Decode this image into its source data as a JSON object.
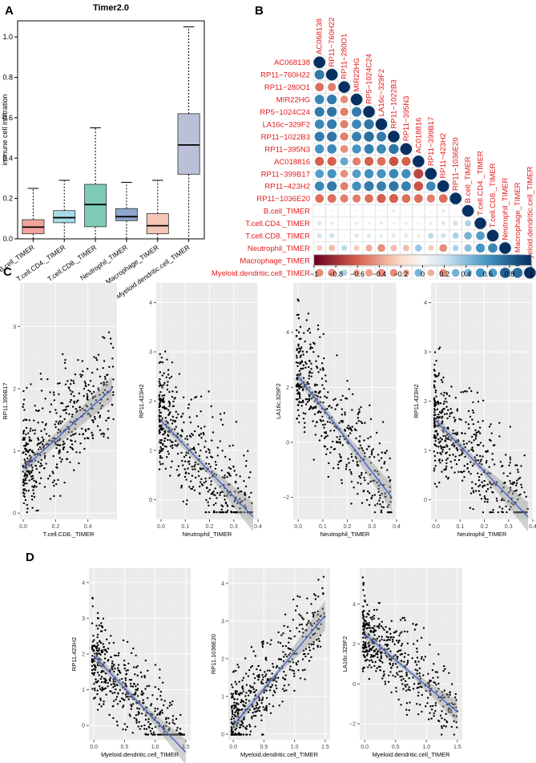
{
  "panel_labels": {
    "a": "A",
    "b": "B",
    "c": "C",
    "d": "D"
  },
  "chart_data": [
    {
      "id": "boxplot",
      "type": "box",
      "title": "Timer2.0",
      "xlabel": "",
      "ylabel": "immune cell infiltration",
      "ylim": [
        0,
        1.08
      ],
      "yticks": [
        0.0,
        0.2,
        0.4,
        0.6,
        0.8,
        1.0
      ],
      "ytick_labels": [
        "0.0",
        "0.2",
        "0.4",
        "0.6",
        "0.8",
        "1.0"
      ],
      "categories": [
        "B.cell_TIMER",
        "T.cell.CD4._TIMER",
        "T.cell.CD8._TIMER",
        "Neutrophil_TIMER",
        "Macrophage_TIMER",
        "Myeloid.dendritic.cell_TIMER"
      ],
      "colors": [
        "#f2a39b",
        "#a8dbe8",
        "#7fcbb8",
        "#8fa6cc",
        "#f5c5b8",
        "#b9c0d8"
      ],
      "boxes": [
        {
          "min": 0.0,
          "q1": 0.025,
          "median": 0.058,
          "q3": 0.095,
          "max": 0.25
        },
        {
          "min": 0.0,
          "q1": 0.08,
          "median": 0.105,
          "q3": 0.14,
          "max": 0.29
        },
        {
          "min": 0.0,
          "q1": 0.06,
          "median": 0.17,
          "q3": 0.27,
          "max": 0.55
        },
        {
          "min": 0.0,
          "q1": 0.09,
          "median": 0.11,
          "q3": 0.15,
          "max": 0.28
        },
        {
          "min": 0.0,
          "q1": 0.025,
          "median": 0.065,
          "q3": 0.125,
          "max": 0.29
        },
        {
          "min": 0.0,
          "q1": 0.32,
          "median": 0.465,
          "q3": 0.62,
          "max": 1.05
        }
      ]
    },
    {
      "id": "correlation",
      "type": "heatmap",
      "style": "corrplot-lower-circles",
      "labels": [
        "AC068138",
        "RP11−760H22",
        "RP11−280O1",
        "MIR22HG",
        "RP5−1024C24",
        "LA16c−329F2",
        "RP11−1022B3",
        "RP11−395N3",
        "AC018816",
        "RP11−399B17",
        "RP11−423H2",
        "RP11−1036E20",
        "B.cell_TIMER",
        "T.cell.CD4._TIMER",
        "T.cell.CD8._TIMER",
        "Neutrophil_TIMER",
        "Macrophage_TIMER",
        "Myeloid.dendritic.cell_TIMER"
      ],
      "matrix": [
        [
          1
        ],
        [
          0.7,
          1
        ],
        [
          -0.55,
          -0.5,
          1
        ],
        [
          0.65,
          0.7,
          -0.45,
          1
        ],
        [
          0.7,
          0.72,
          -0.5,
          0.7,
          1
        ],
        [
          0.65,
          0.7,
          -0.5,
          0.65,
          0.72,
          1
        ],
        [
          0.7,
          0.72,
          -0.5,
          0.68,
          0.75,
          0.7,
          1
        ],
        [
          0.6,
          0.65,
          -0.45,
          0.6,
          0.68,
          0.65,
          0.72,
          1
        ],
        [
          -0.6,
          -0.6,
          0.5,
          -0.5,
          -0.6,
          -0.55,
          -0.65,
          -0.6,
          1
        ],
        [
          0.55,
          0.6,
          -0.45,
          0.55,
          0.62,
          0.6,
          0.65,
          0.62,
          -0.7,
          1
        ],
        [
          0.65,
          0.7,
          -0.5,
          0.62,
          0.7,
          0.68,
          0.72,
          0.68,
          -0.65,
          0.65,
          1
        ],
        [
          -0.55,
          -0.55,
          -0.5,
          -0.5,
          -0.55,
          -0.6,
          -0.6,
          -0.55,
          -0.55,
          -0.5,
          -0.55,
          1
        ],
        [
          0.05,
          0.05,
          -0.05,
          0.05,
          0.0,
          0.05,
          0.1,
          0.05,
          0.0,
          0.05,
          0.1,
          -0.05,
          1
        ],
        [
          0.15,
          0.1,
          -0.05,
          0.1,
          0.05,
          0.1,
          0.05,
          0.1,
          -0.05,
          0.1,
          0.15,
          0.2,
          0.3,
          1
        ],
        [
          0.2,
          0.2,
          -0.05,
          0.15,
          0.15,
          0.1,
          0.15,
          0.15,
          -0.1,
          0.25,
          0.2,
          0.3,
          0.45,
          0.55,
          1
        ],
        [
          -0.25,
          -0.3,
          0.25,
          -0.25,
          -0.35,
          -0.45,
          -0.3,
          -0.3,
          0.35,
          -0.25,
          -0.45,
          0.3,
          0.4,
          0.6,
          0.65,
          1
        ],
        [
          -0.25,
          -0.25,
          0.2,
          -0.25,
          -0.3,
          -0.35,
          -0.25,
          -0.25,
          0.35,
          -0.2,
          -0.35,
          0.25,
          0.35,
          0.55,
          0.6,
          0.8,
          1
        ],
        [
          -0.45,
          -0.45,
          0.3,
          -0.35,
          -0.4,
          -0.45,
          -0.45,
          -0.35,
          0.45,
          -0.35,
          -0.45,
          0.45,
          0.45,
          0.6,
          0.55,
          0.8,
          0.75,
          1
        ]
      ],
      "gene_label_color": "#e41a1c",
      "cell_label_color": "#e41a1c",
      "colorbar_ticks": [
        -1,
        -0.8,
        -0.6,
        -0.4,
        -0.2,
        0,
        0.2,
        0.4,
        0.6,
        0.8,
        1
      ],
      "colorbar_tick_labels": [
        "−1",
        "−0.8",
        "−0.6",
        "−0.4",
        "−0.2",
        "0",
        "0.2",
        "0.4",
        "0.6",
        "0.8",
        "1"
      ],
      "colors": {
        "neg": "#67001f",
        "mid": "#f7f7f7",
        "pos": "#053061"
      }
    },
    {
      "id": "C1",
      "type": "scatter",
      "xlabel": "T.cell.CD8._TIMER",
      "ylabel": "RP11.399B17",
      "xlim": [
        -0.02,
        0.58
      ],
      "ylim": [
        -0.1,
        3.7
      ],
      "xticks": [
        0.0,
        0.2,
        0.4
      ],
      "xtick_labels": [
        "0.0",
        "0.2",
        "0.4"
      ],
      "yticks": [
        0,
        1,
        2,
        3
      ],
      "ytick_labels": [
        "0",
        "1",
        "2",
        "3"
      ],
      "trend": {
        "x": [
          0.0,
          0.55
        ],
        "y": [
          0.72,
          2.0
        ],
        "band": [
          0.08,
          0.12,
          0.2
        ]
      },
      "points_summary": "dense cloud, positive trend",
      "points_seed": 11,
      "n_points": 480
    },
    {
      "id": "C2",
      "type": "scatter",
      "xlabel": "Neutrophil_TIMER",
      "ylabel": "RP11.423H2",
      "xlim": [
        -0.02,
        0.4
      ],
      "ylim": [
        -0.4,
        4.4
      ],
      "xticks": [
        0.0,
        0.1,
        0.2,
        0.3,
        0.4
      ],
      "xtick_labels": [
        "0.0",
        "0.1",
        "0.2",
        "0.3",
        "0.4"
      ],
      "yticks": [
        0,
        1,
        2,
        3,
        4
      ],
      "ytick_labels": [
        "0",
        "1",
        "2",
        "3",
        "4"
      ],
      "trend": {
        "x": [
          0.0,
          0.38
        ],
        "y": [
          1.6,
          -0.35
        ],
        "band": [
          0.1,
          0.08,
          0.3
        ]
      },
      "points_summary": "dense cloud, negative trend",
      "points_seed": 23,
      "n_points": 480
    },
    {
      "id": "C3",
      "type": "scatter",
      "xlabel": "Neutrophil_TIMER",
      "ylabel": "LA16c.329F2",
      "xlim": [
        -0.02,
        0.4
      ],
      "ylim": [
        -2.8,
        5.8
      ],
      "xticks": [
        0.0,
        0.1,
        0.2,
        0.3,
        0.4
      ],
      "xtick_labels": [
        "0.0",
        "0.1",
        "0.2",
        "0.3",
        "0.4"
      ],
      "yticks": [
        -2,
        0,
        2,
        4
      ],
      "ytick_labels": [
        "−2",
        "0",
        "2",
        "4"
      ],
      "trend": {
        "x": [
          0.0,
          0.38
        ],
        "y": [
          2.4,
          -2.0
        ],
        "band": [
          0.2,
          0.15,
          0.5
        ]
      },
      "points_summary": "dense cloud, negative trend",
      "points_seed": 37,
      "n_points": 480
    },
    {
      "id": "C4",
      "type": "scatter",
      "xlabel": "Neutrophil_TIMER",
      "ylabel": "RP11.423H2",
      "xlim": [
        -0.02,
        0.4
      ],
      "ylim": [
        -0.4,
        4.4
      ],
      "xticks": [
        0.0,
        0.1,
        0.2,
        0.3,
        0.4
      ],
      "xtick_labels": [
        "0.0",
        "0.1",
        "0.2",
        "0.3",
        "0.4"
      ],
      "yticks": [
        0,
        1,
        2,
        3,
        4
      ],
      "ytick_labels": [
        "0",
        "1",
        "2",
        "3",
        "4"
      ],
      "trend": {
        "x": [
          0.0,
          0.38
        ],
        "y": [
          1.6,
          -0.35
        ],
        "band": [
          0.1,
          0.08,
          0.3
        ]
      },
      "points_summary": "dense cloud, negative trend",
      "points_seed": 41,
      "n_points": 480
    },
    {
      "id": "D1",
      "type": "scatter",
      "xlabel": "Myeloid.dendritic.cell_TIMER",
      "ylabel": "RP11.423H2",
      "xlim": [
        -0.08,
        1.58
      ],
      "ylim": [
        -0.4,
        4.4
      ],
      "xticks": [
        0.0,
        0.5,
        1.0,
        1.5
      ],
      "xtick_labels": [
        "0.0",
        "0.5",
        "1.0",
        "1.5"
      ],
      "yticks": [
        0,
        1,
        2,
        3,
        4
      ],
      "ytick_labels": [
        "0",
        "1",
        "2",
        "3",
        "4"
      ],
      "trend": {
        "x": [
          0.0,
          1.5
        ],
        "y": [
          1.95,
          -0.75
        ],
        "band": [
          0.15,
          0.08,
          0.35
        ]
      },
      "points_summary": "dense cloud, negative trend",
      "points_seed": 53,
      "n_points": 480
    },
    {
      "id": "D2",
      "type": "scatter",
      "xlabel": "Myeloid.dendritic.cell_TIMER",
      "ylabel": "RP11.1036E20",
      "xlim": [
        -0.08,
        1.58
      ],
      "ylim": [
        -0.15,
        4.4
      ],
      "xticks": [
        0.0,
        0.5,
        1.0,
        1.5
      ],
      "xtick_labels": [
        "0.0",
        "0.5",
        "1.0",
        "1.5"
      ],
      "yticks": [
        0,
        1,
        2,
        3,
        4
      ],
      "ytick_labels": [
        "0",
        "1",
        "2",
        "3",
        "4"
      ],
      "trend": {
        "x": [
          0.0,
          1.5
        ],
        "y": [
          0.22,
          3.15
        ],
        "band": [
          0.15,
          0.07,
          0.4
        ]
      },
      "points_summary": "dense cloud, positive trend",
      "points_seed": 67,
      "n_points": 480
    },
    {
      "id": "D3",
      "type": "scatter",
      "xlabel": "Myeloid.dendritic.cell_TIMER",
      "ylabel": "LA16c.329F2",
      "xlim": [
        -0.08,
        1.58
      ],
      "ylim": [
        -2.8,
        5.8
      ],
      "xticks": [
        0.0,
        0.5,
        1.0,
        1.5
      ],
      "xtick_labels": [
        "0.0",
        "0.5",
        "1.0",
        "1.5"
      ],
      "yticks": [
        -2,
        0,
        2,
        4
      ],
      "ytick_labels": [
        "−2",
        "0",
        "2",
        "4"
      ],
      "trend": {
        "x": [
          0.0,
          1.5
        ],
        "y": [
          2.5,
          -1.4
        ],
        "band": [
          0.25,
          0.12,
          0.55
        ]
      },
      "points_summary": "dense cloud, negative trend",
      "points_seed": 79,
      "n_points": 480
    }
  ]
}
